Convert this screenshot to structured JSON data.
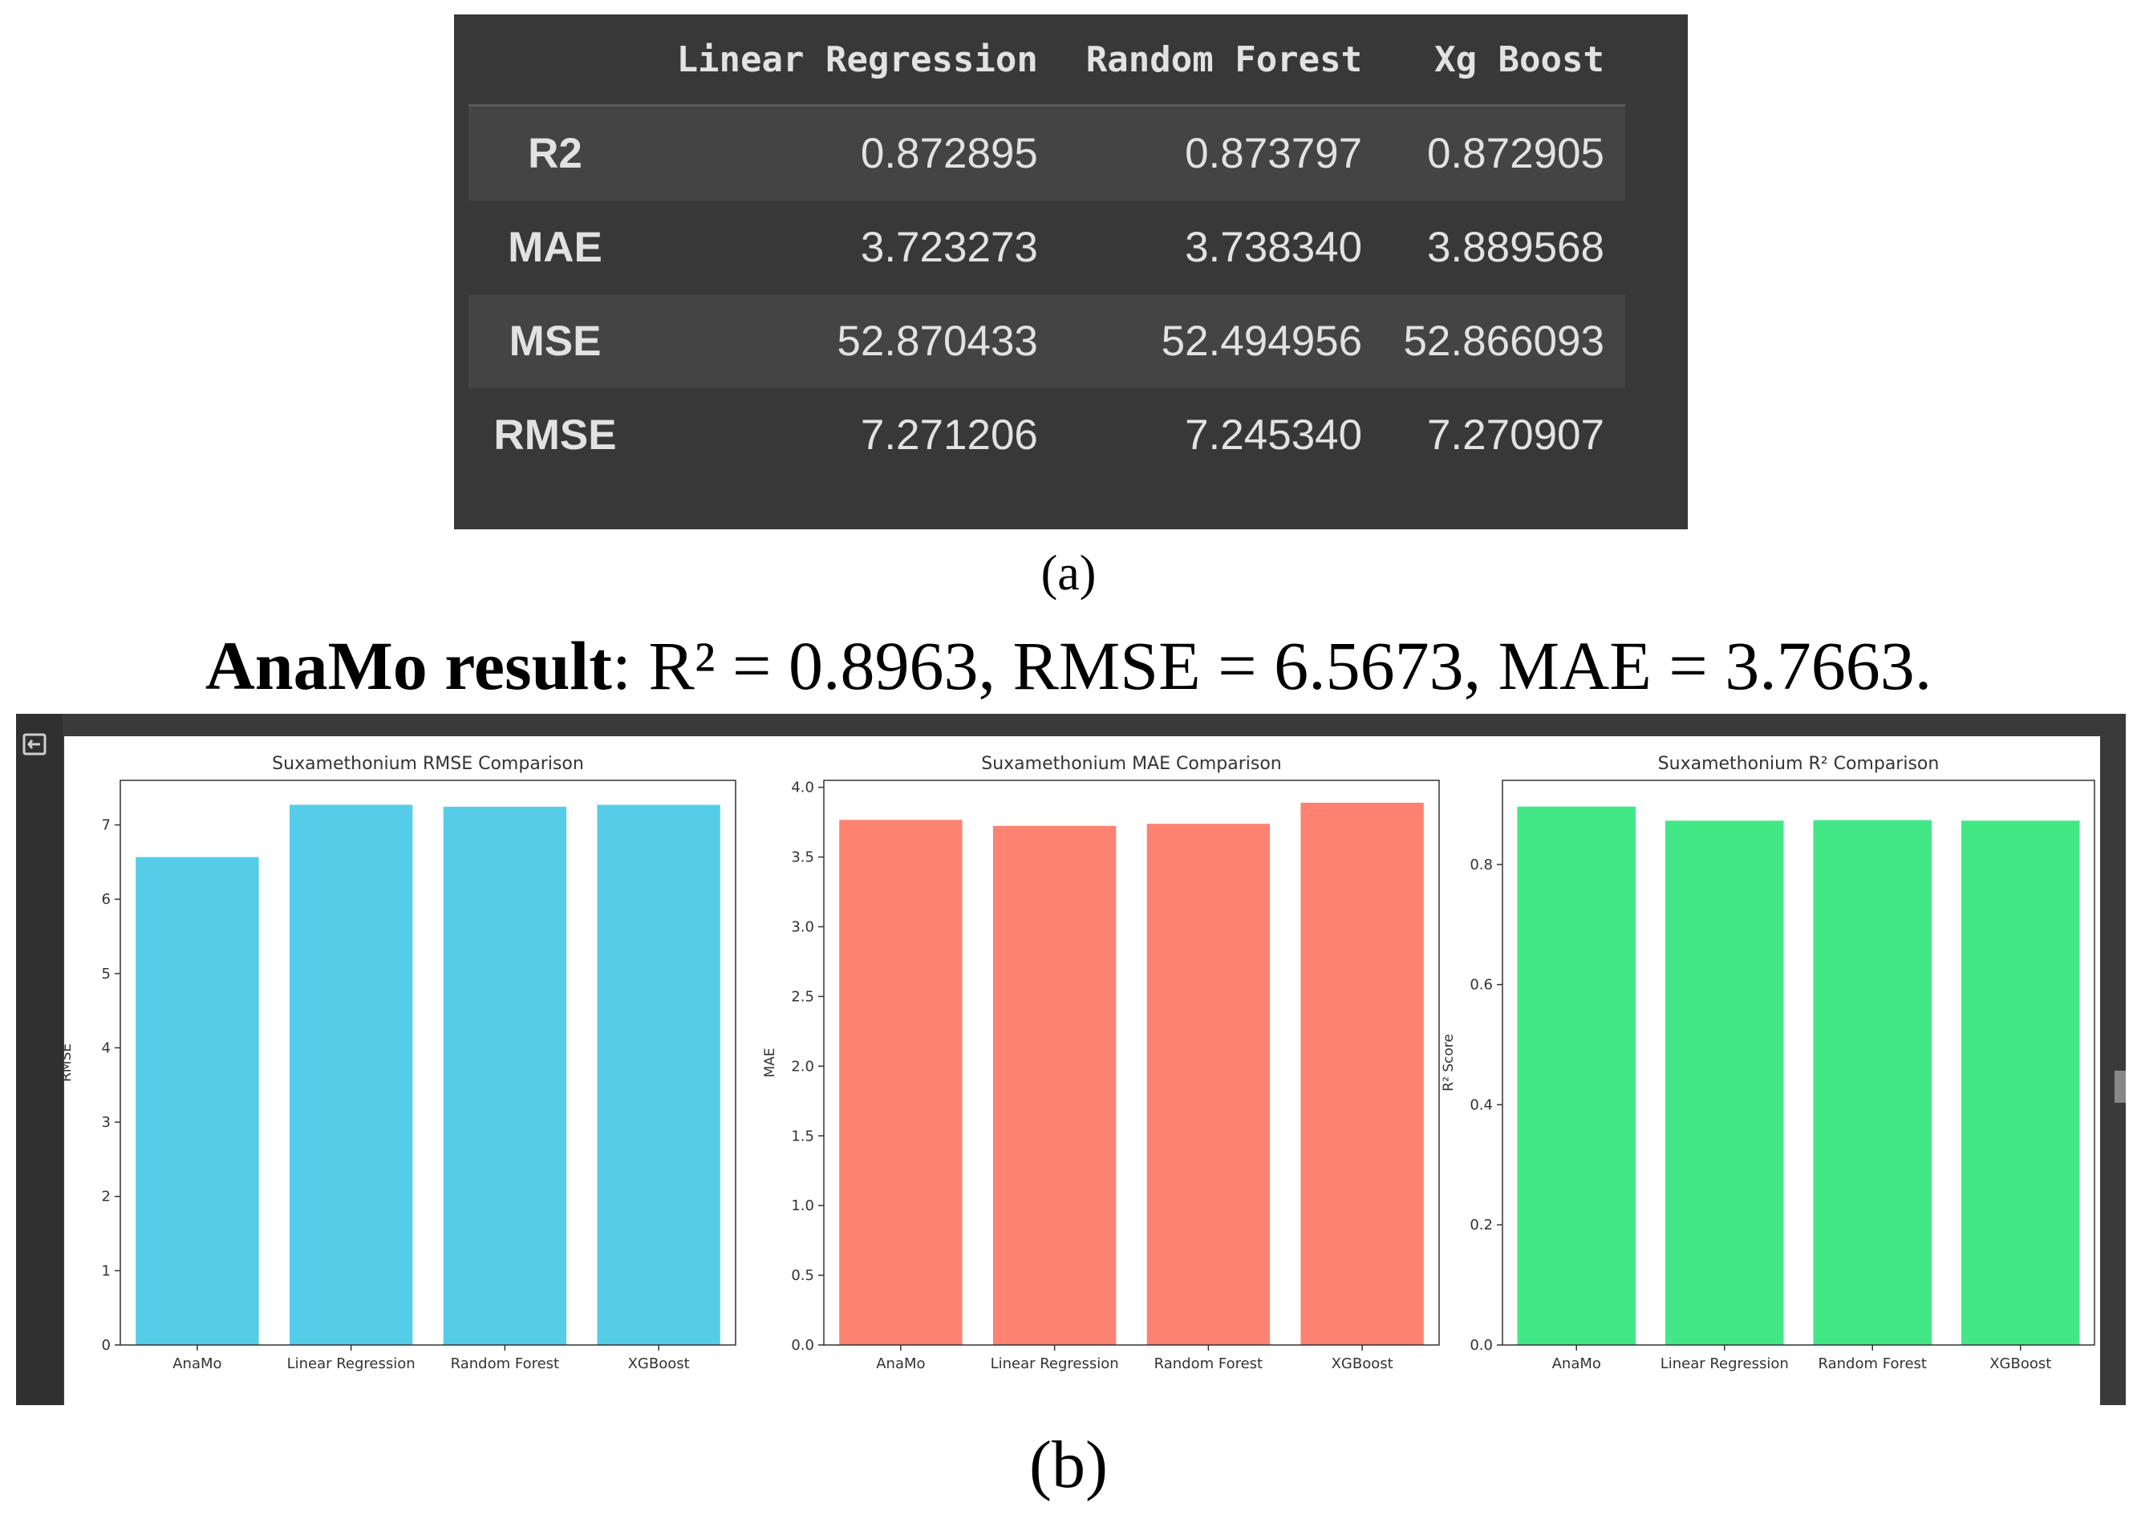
{
  "table": {
    "columns": [
      "",
      "Linear Regression",
      "Random Forest",
      "Xg Boost"
    ],
    "rows": [
      {
        "label": "R2",
        "values": [
          "0.872895",
          "0.873797",
          "0.872905"
        ]
      },
      {
        "label": "MAE",
        "values": [
          "3.723273",
          "3.738340",
          "3.889568"
        ]
      },
      {
        "label": "MSE",
        "values": [
          "52.870433",
          "52.494956",
          "52.866093"
        ]
      },
      {
        "label": "RMSE",
        "values": [
          "7.271206",
          "7.245340",
          "7.270907"
        ]
      }
    ]
  },
  "captions": {
    "a": "(a)",
    "b": "(b)"
  },
  "anamo_result": {
    "label": "AnaMo result",
    "text": ": R² = 0.8963, RMSE = 6.5673, MAE = 3.7663."
  },
  "notebook": {
    "gutter_icon": "collapse-output-icon"
  },
  "chart_data": [
    {
      "type": "bar",
      "title": "Suxamethonium RMSE Comparison",
      "xlabel": "",
      "ylabel": "RMSE",
      "categories": [
        "AnaMo",
        "Linear Regression",
        "Random Forest",
        "XGBoost"
      ],
      "values": [
        6.5673,
        7.271206,
        7.24534,
        7.270907
      ],
      "ylim": [
        0,
        7.6
      ],
      "yticks": [
        0,
        1,
        2,
        3,
        4,
        5,
        6,
        7
      ],
      "ytick_labels": [
        "0",
        "1",
        "2",
        "3",
        "4",
        "5",
        "6",
        "7"
      ],
      "color": "#55cde8",
      "grid": false
    },
    {
      "type": "bar",
      "title": "Suxamethonium MAE Comparison",
      "xlabel": "",
      "ylabel": "MAE",
      "categories": [
        "AnaMo",
        "Linear Regression",
        "Random Forest",
        "XGBoost"
      ],
      "values": [
        3.7663,
        3.723273,
        3.73834,
        3.889568
      ],
      "ylim": [
        0,
        4.05
      ],
      "yticks": [
        0,
        0.5,
        1.0,
        1.5,
        2.0,
        2.5,
        3.0,
        3.5,
        4.0
      ],
      "ytick_labels": [
        "0.0",
        "0.5",
        "1.0",
        "1.5",
        "2.0",
        "2.5",
        "3.0",
        "3.5",
        "4.0"
      ],
      "color": "#fd8272",
      "grid": false
    },
    {
      "type": "bar",
      "title": "Suxamethonium R² Comparison",
      "xlabel": "",
      "ylabel": "R² Score",
      "categories": [
        "AnaMo",
        "Linear Regression",
        "Random Forest",
        "XGBoost"
      ],
      "values": [
        0.8963,
        0.872895,
        0.873797,
        0.872905
      ],
      "ylim": [
        0,
        0.94
      ],
      "yticks": [
        0,
        0.2,
        0.4,
        0.6,
        0.8
      ],
      "ytick_labels": [
        "0.0",
        "0.2",
        "0.4",
        "0.6",
        "0.8"
      ],
      "color": "#43e886",
      "grid": false
    }
  ]
}
